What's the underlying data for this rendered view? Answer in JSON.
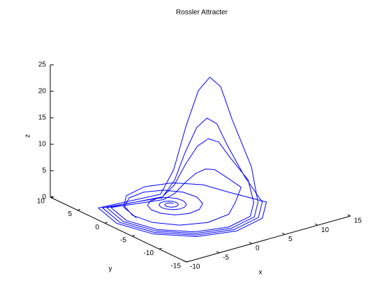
{
  "chart_data": {
    "type": "line3d",
    "title": "Rossler Attracter",
    "xlabel": "x",
    "ylabel": "y",
    "zlabel": "z",
    "xlim": [
      -10,
      15
    ],
    "ylim": [
      -15,
      10
    ],
    "zlim": [
      0,
      25
    ],
    "xticks": [
      -10,
      -5,
      0,
      5,
      10,
      15
    ],
    "yticks": [
      -15,
      -10,
      -5,
      0,
      5,
      10
    ],
    "zticks": [
      0,
      5,
      10,
      15,
      20,
      25
    ],
    "series": [
      {
        "color": "#0000ff",
        "x": [
          0.5,
          0.46,
          0.28,
          0,
          -0.32,
          -0.58,
          -0.71,
          -0.65,
          -0.4,
          0,
          0.45,
          0.82,
          1.01,
          0.93,
          0.57,
          0,
          -0.64,
          -1.17,
          -1.43,
          -1.31,
          -0.8,
          0,
          0.9,
          1.65,
          2.02,
          1.86,
          1.14,
          0,
          -1.28,
          -2.35,
          -2.87,
          -2.63,
          -1.62,
          0,
          1.82,
          3.33,
          4.07,
          3.74,
          2.29,
          0,
          -2.57,
          -4.72,
          -5.78,
          -5.31,
          -3.25,
          0,
          3.65,
          6.69,
          9.25,
          7.8,
          6.53,
          5.25,
          3.98,
          2.7,
          1.43,
          0.15,
          -6.36,
          -7.5,
          -6.36,
          -3.25,
          1,
          5.25,
          8.36,
          10.22,
          8.6,
          7.18,
          5.75,
          4.33,
          2.9,
          1.48,
          0.05,
          -7.23,
          -8.5,
          -7.23,
          -3.75,
          1,
          5.75,
          9.23,
          9.73,
          8.2,
          6.85,
          5.5,
          4.15,
          2.8,
          1.45,
          0.1,
          -6.79,
          -8,
          -6.79,
          -3.5,
          1,
          5.5,
          8.79,
          10.7,
          9,
          7.5,
          6,
          4.5,
          3,
          1.5,
          0,
          -7.66,
          -9,
          -7.66,
          -4,
          1,
          6,
          9.66,
          8,
          7.06,
          4.5,
          1,
          -2.5,
          -5.06,
          -6
        ],
        "y": [
          0,
          0.27,
          0.49,
          0.6,
          0.55,
          0.34,
          0,
          -0.38,
          -0.69,
          -0.84,
          -0.78,
          -0.48,
          0,
          0.54,
          0.98,
          1.2,
          1.1,
          0.68,
          0,
          -0.76,
          -1.39,
          -1.7,
          -1.56,
          -0.96,
          0,
          1.08,
          1.97,
          2.41,
          2.22,
          1.36,
          0,
          -1.52,
          -2.8,
          -3.42,
          -3.14,
          -1.92,
          0,
          2.16,
          3.97,
          4.85,
          4.45,
          2.73,
          0,
          -3.07,
          -5.62,
          -6.88,
          -6.31,
          -3.87,
          -1.85,
          -0.57,
          -0.32,
          -0.15,
          0.11,
          0.53,
          0.87,
          1.38,
          3.25,
          -1,
          -5.25,
          -8.36,
          -9.5,
          -8.36,
          -5.25,
          -1.95,
          -0.52,
          -0.24,
          -0.05,
          0.24,
          0.71,
          1.09,
          1.66,
          3.75,
          -1,
          -5.75,
          -9.23,
          -10.5,
          -9.23,
          -5.75,
          -1.9,
          -0.55,
          -0.28,
          -0.1,
          0.17,
          0.62,
          0.98,
          1.52,
          3.5,
          -1,
          -5.5,
          -8.79,
          -10,
          -8.79,
          -5.5,
          -2,
          -0.5,
          -0.2,
          0,
          0.3,
          0.8,
          1.2,
          1.8,
          4,
          -1,
          -6,
          -9.66,
          -11,
          -9.66,
          -6,
          -1,
          2.5,
          5.06,
          6,
          5.06,
          2.5,
          -1
        ],
        "z": [
          0.02,
          0.02,
          0.02,
          0.02,
          0.02,
          0.02,
          0.02,
          0.02,
          0.02,
          0.02,
          0.02,
          0.02,
          0.02,
          0.02,
          0.02,
          0.02,
          0.02,
          0.02,
          0.02,
          0.02,
          0.02,
          0.02,
          0.02,
          0.02,
          0.02,
          0.02,
          0.02,
          0.02,
          0.02,
          0.02,
          0.02,
          0.02,
          0.02,
          0.02,
          0.02,
          0.02,
          0.02,
          0.02,
          0.02,
          0.02,
          0.02,
          0.02,
          0.02,
          0.02,
          0.02,
          0.02,
          0.02,
          0.02,
          1,
          3,
          4.5,
          5,
          4.5,
          3,
          1.25,
          0.25,
          0.1,
          0.1,
          0.1,
          0.1,
          0.1,
          0.1,
          0.1,
          2.1,
          6.3,
          9.45,
          10.5,
          9.45,
          6.3,
          2.63,
          0.53,
          0.1,
          0.1,
          0.1,
          0.1,
          0.1,
          0.1,
          0.1,
          2.9,
          8.7,
          13.05,
          14.5,
          13.05,
          8.7,
          3.63,
          0.73,
          0.1,
          0.1,
          0.1,
          0.1,
          0.1,
          0.1,
          0.1,
          4.4,
          13.2,
          19.8,
          22,
          19.8,
          13.2,
          5.5,
          1.1,
          0.1,
          0.1,
          0.1,
          0.1,
          0.1,
          0.1,
          0.1,
          0.1,
          0.1,
          0.1,
          0.1,
          0.1,
          0.1,
          0.1
        ]
      }
    ]
  }
}
